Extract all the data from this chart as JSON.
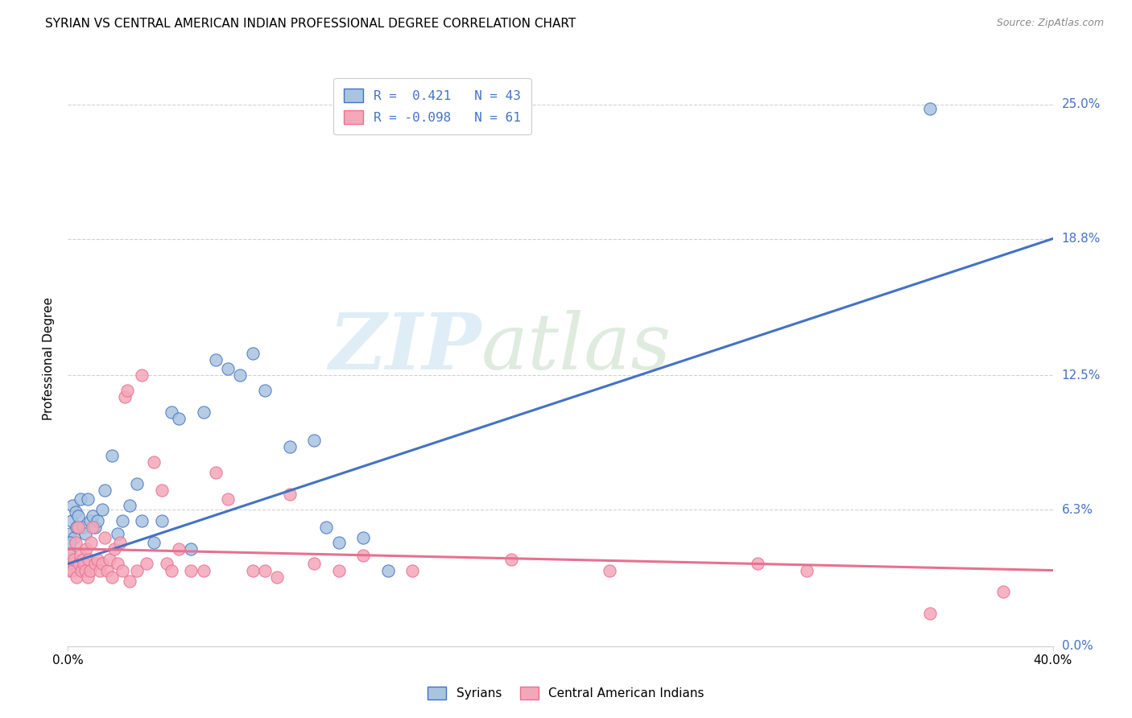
{
  "title": "SYRIAN VS CENTRAL AMERICAN INDIAN PROFESSIONAL DEGREE CORRELATION CHART",
  "source": "Source: ZipAtlas.com",
  "ylabel": "Professional Degree",
  "ytick_values": [
    0.0,
    6.3,
    12.5,
    18.8,
    25.0
  ],
  "ytick_labels": [
    "0.0%",
    "6.3%",
    "12.5%",
    "18.8%",
    "25.0%"
  ],
  "xlim": [
    0.0,
    40.0
  ],
  "ylim": [
    0.0,
    26.5
  ],
  "color_syrian": "#a8c4e0",
  "color_central": "#f4a7b9",
  "color_line_syrian": "#4472c4",
  "color_line_central": "#e87090",
  "watermark_zip": "ZIP",
  "watermark_atlas": "atlas",
  "legend_label1": "Syrians",
  "legend_label2": "Central American Indians",
  "syrian_line_x": [
    0.0,
    40.0
  ],
  "syrian_line_y": [
    3.8,
    18.8
  ],
  "central_line_x": [
    0.0,
    40.0
  ],
  "central_line_y": [
    4.5,
    3.5
  ],
  "syrian_x": [
    0.05,
    0.1,
    0.15,
    0.2,
    0.25,
    0.3,
    0.35,
    0.4,
    0.5,
    0.6,
    0.7,
    0.8,
    0.9,
    1.0,
    1.1,
    1.2,
    1.4,
    1.5,
    1.8,
    2.0,
    2.2,
    2.5,
    2.8,
    3.0,
    3.5,
    3.8,
    4.2,
    4.5,
    5.0,
    5.5,
    6.0,
    6.5,
    7.0,
    7.5,
    8.0,
    9.0,
    10.0,
    10.5,
    11.0,
    12.0,
    13.0,
    35.0,
    0.08
  ],
  "syrian_y": [
    4.5,
    5.2,
    5.8,
    6.5,
    5.0,
    6.2,
    5.5,
    6.0,
    6.8,
    5.5,
    5.2,
    6.8,
    5.8,
    6.0,
    5.5,
    5.8,
    6.3,
    7.2,
    8.8,
    5.2,
    5.8,
    6.5,
    7.5,
    5.8,
    4.8,
    5.8,
    10.8,
    10.5,
    4.5,
    10.8,
    13.2,
    12.8,
    12.5,
    13.5,
    11.8,
    9.2,
    9.5,
    5.5,
    4.8,
    5.0,
    3.5,
    24.8,
    4.8
  ],
  "central_x": [
    0.05,
    0.1,
    0.15,
    0.2,
    0.25,
    0.3,
    0.35,
    0.4,
    0.45,
    0.5,
    0.55,
    0.6,
    0.65,
    0.7,
    0.75,
    0.8,
    0.85,
    0.9,
    0.95,
    1.0,
    1.1,
    1.2,
    1.3,
    1.4,
    1.5,
    1.6,
    1.7,
    1.8,
    1.9,
    2.0,
    2.1,
    2.2,
    2.3,
    2.4,
    2.5,
    2.8,
    3.0,
    3.2,
    3.5,
    3.8,
    4.0,
    4.2,
    4.5,
    5.0,
    5.5,
    6.0,
    6.5,
    7.5,
    8.0,
    8.5,
    9.0,
    10.0,
    11.0,
    12.0,
    14.0,
    18.0,
    22.0,
    28.0,
    30.0,
    35.0,
    38.0
  ],
  "central_y": [
    3.5,
    4.2,
    3.8,
    3.5,
    4.0,
    4.8,
    3.2,
    5.5,
    3.8,
    4.2,
    3.5,
    4.0,
    3.8,
    3.5,
    4.5,
    3.2,
    4.0,
    3.5,
    4.8,
    5.5,
    3.8,
    4.0,
    3.5,
    3.8,
    5.0,
    3.5,
    4.0,
    3.2,
    4.5,
    3.8,
    4.8,
    3.5,
    11.5,
    11.8,
    3.0,
    3.5,
    12.5,
    3.8,
    8.5,
    7.2,
    3.8,
    3.5,
    4.5,
    3.5,
    3.5,
    8.0,
    6.8,
    3.5,
    3.5,
    3.2,
    7.0,
    3.8,
    3.5,
    4.2,
    3.5,
    4.0,
    3.5,
    3.8,
    3.5,
    1.5,
    2.5
  ]
}
